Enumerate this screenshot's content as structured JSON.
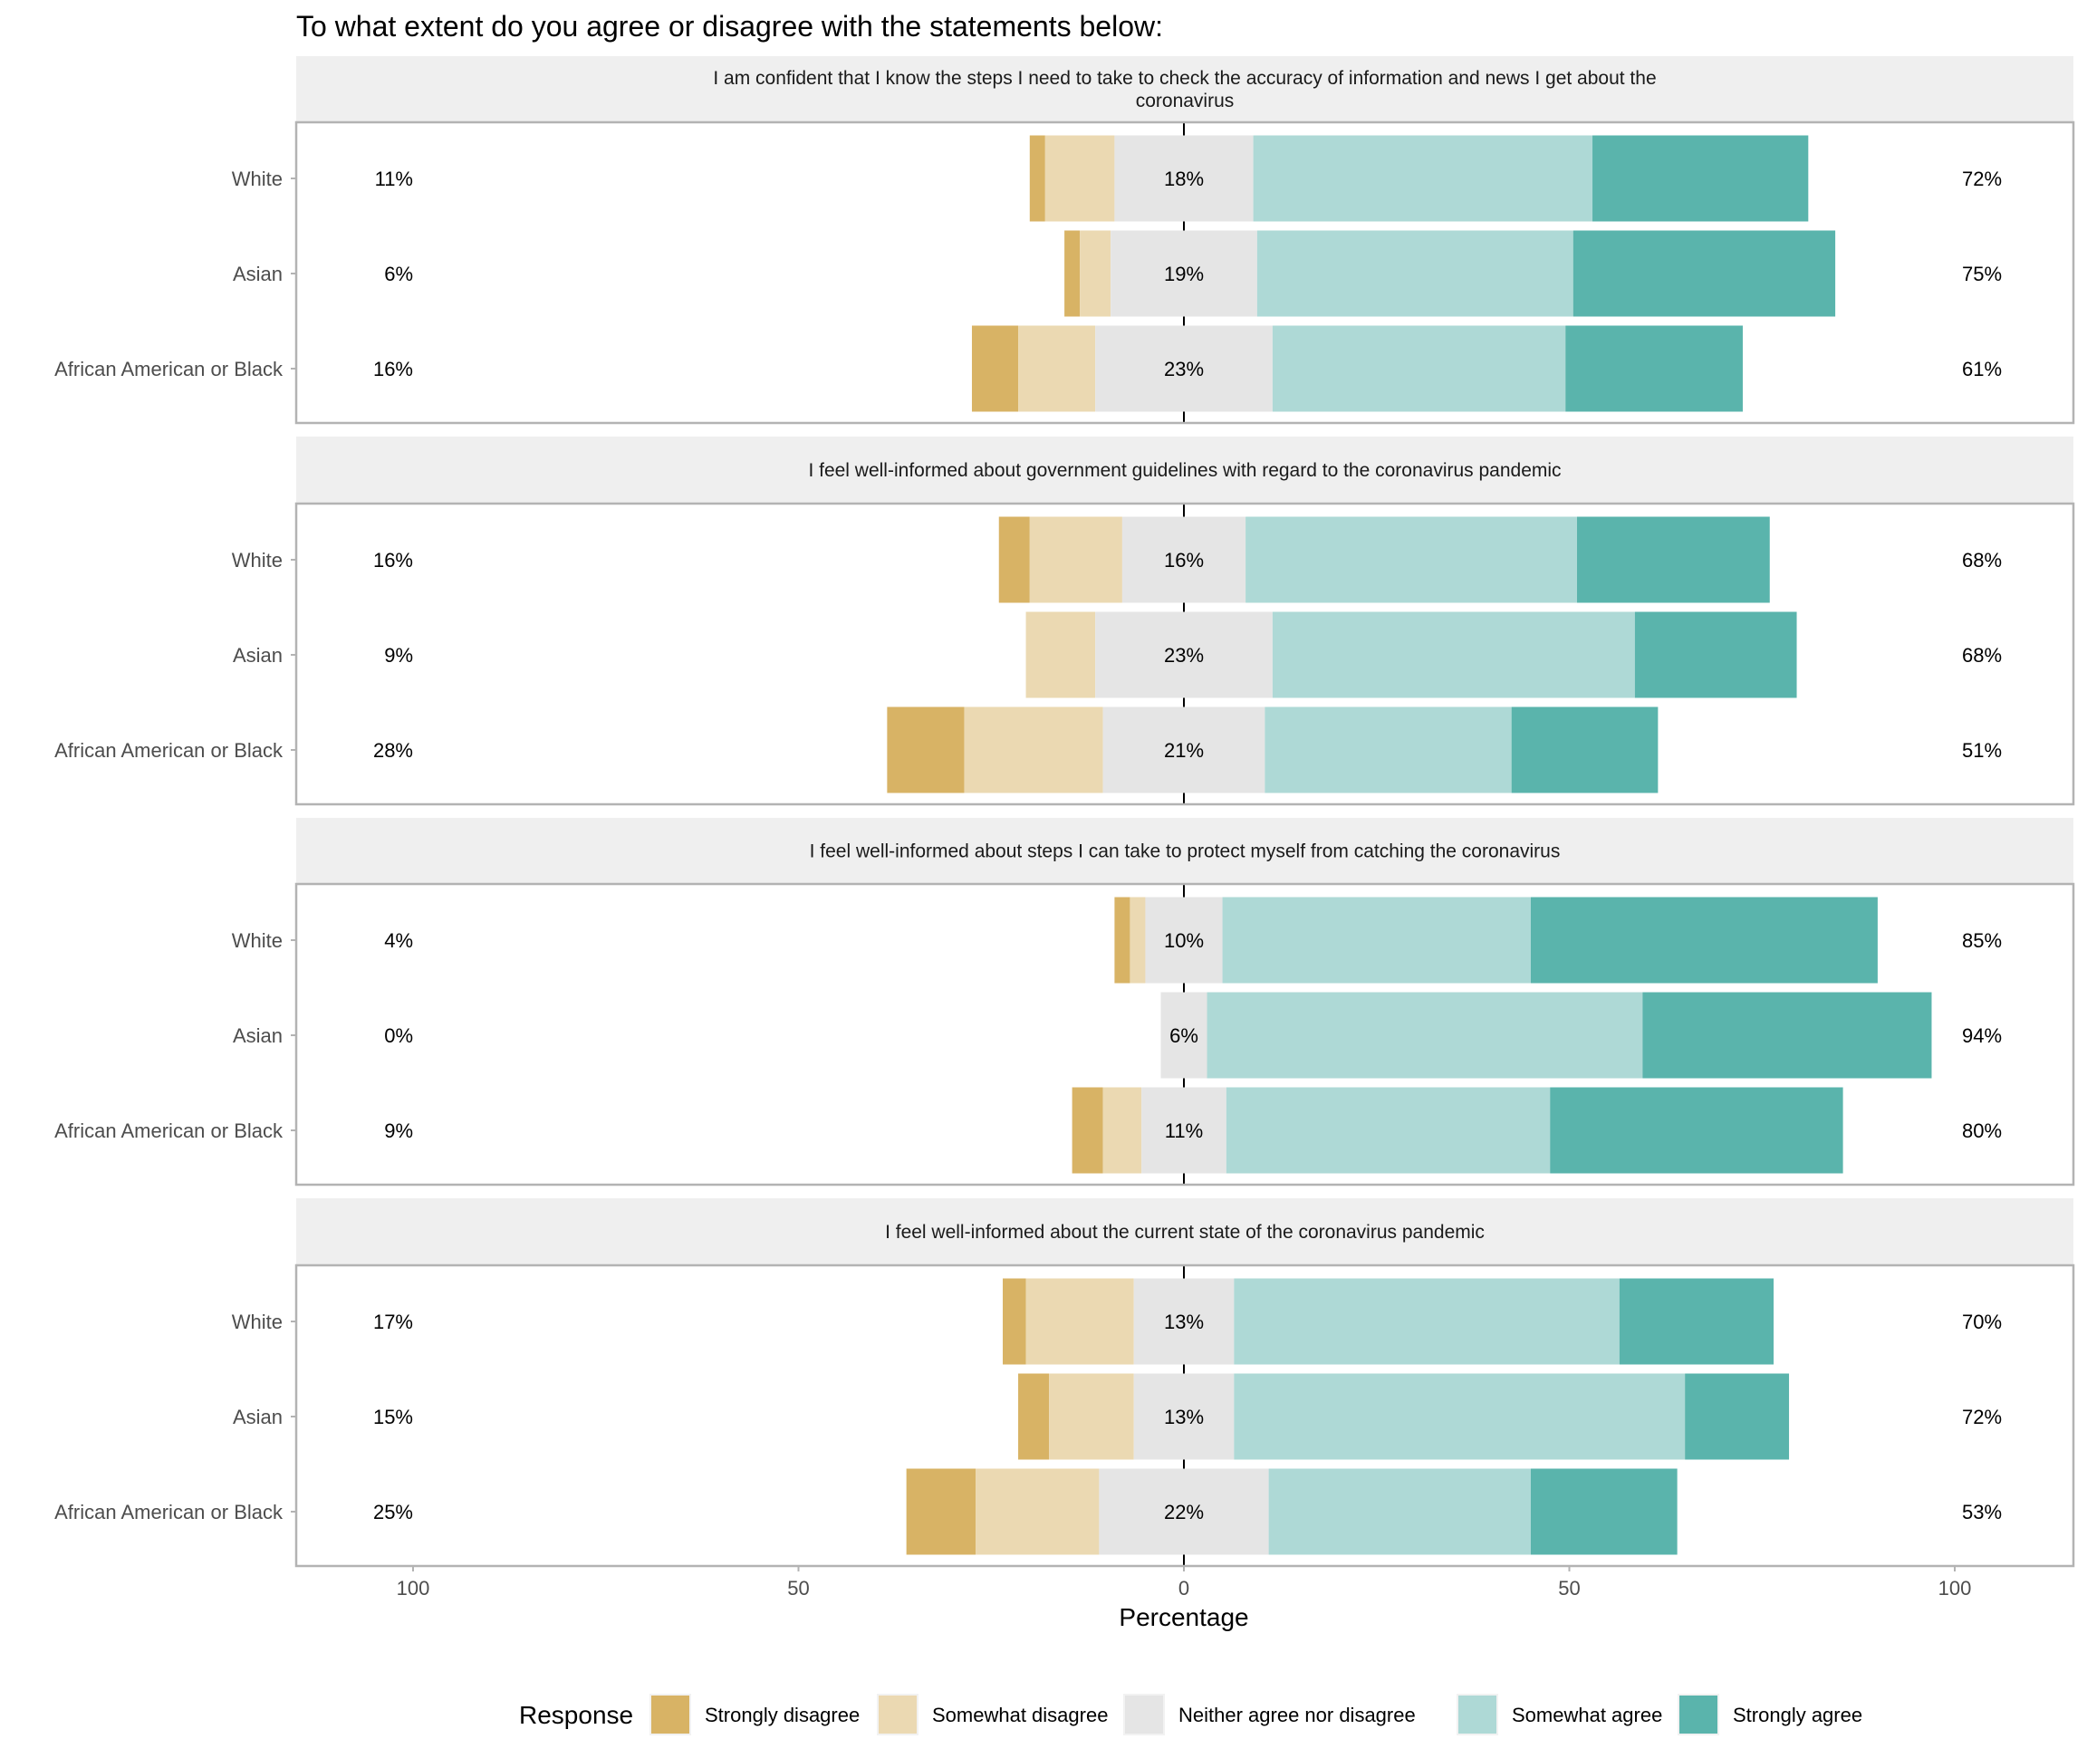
{
  "chart_data": {
    "type": "bar",
    "subtype": "diverging-stacked-horizontal",
    "title": "To what extent do you agree or disagree with the statements below:",
    "xlabel": "Percentage",
    "ylabel": "",
    "xlim": [
      -100,
      100
    ],
    "x_ticks": [
      100,
      50,
      0,
      50,
      100
    ],
    "grid": true,
    "legend": {
      "title": "Response",
      "position": "bottom",
      "entries": [
        {
          "name": "Strongly disagree",
          "color": "#D8B365"
        },
        {
          "name": "Somewhat disagree",
          "color": "#EBD9B2"
        },
        {
          "name": "Neither agree nor disagree",
          "color": "#E5E5E5"
        },
        {
          "name": "Somewhat agree",
          "color": "#AED9D6"
        },
        {
          "name": "Strongly agree",
          "color": "#5AB4AC"
        }
      ]
    },
    "categories": [
      "White",
      "Asian",
      "African American or Black"
    ],
    "panels": [
      {
        "statement_lines": [
          "I am confident that I know the steps I need to take to check the accuracy of information and news I get about the",
          "coronavirus"
        ],
        "rows": [
          {
            "group": "White",
            "values": [
              2,
              9,
              18,
              44,
              28
            ],
            "disagree_label": "11%",
            "neutral_label": "18%",
            "agree_label": "72%"
          },
          {
            "group": "Asian",
            "values": [
              2,
              4,
              19,
              41,
              34
            ],
            "disagree_label": "6%",
            "neutral_label": "19%",
            "agree_label": "75%"
          },
          {
            "group": "African American or Black",
            "values": [
              6,
              10,
              23,
              38,
              23
            ],
            "disagree_label": "16%",
            "neutral_label": "23%",
            "agree_label": "61%"
          }
        ]
      },
      {
        "statement_lines": [
          "I feel well-informed about government guidelines with regard to the coronavirus pandemic"
        ],
        "rows": [
          {
            "group": "White",
            "values": [
              4,
              12,
              16,
              43,
              25
            ],
            "disagree_label": "16%",
            "neutral_label": "16%",
            "agree_label": "68%"
          },
          {
            "group": "Asian",
            "values": [
              0,
              9,
              23,
              47,
              21
            ],
            "disagree_label": "9%",
            "neutral_label": "23%",
            "agree_label": "68%"
          },
          {
            "group": "African American or Black",
            "values": [
              10,
              18,
              21,
              32,
              19
            ],
            "disagree_label": "28%",
            "neutral_label": "21%",
            "agree_label": "51%"
          }
        ]
      },
      {
        "statement_lines": [
          "I feel well-informed about steps I can take to protect myself from catching the coronavirus"
        ],
        "rows": [
          {
            "group": "White",
            "values": [
              2,
              2,
              10,
              40,
              45
            ],
            "disagree_label": "4%",
            "neutral_label": "10%",
            "agree_label": "85%"
          },
          {
            "group": "Asian",
            "values": [
              0,
              0,
              6,
              56.5,
              37.5
            ],
            "disagree_label": "0%",
            "neutral_label": "6%",
            "agree_label": "94%"
          },
          {
            "group": "African American or Black",
            "values": [
              4,
              5,
              11,
              42,
              38
            ],
            "disagree_label": "9%",
            "neutral_label": "11%",
            "agree_label": "80%"
          }
        ]
      },
      {
        "statement_lines": [
          "I feel well-informed about the current state of the coronavirus pandemic"
        ],
        "rows": [
          {
            "group": "White",
            "values": [
              3,
              14,
              13,
              50,
              20
            ],
            "disagree_label": "17%",
            "neutral_label": "13%",
            "agree_label": "70%"
          },
          {
            "group": "Asian",
            "values": [
              4,
              11,
              13,
              58.5,
              13.5
            ],
            "disagree_label": "15%",
            "neutral_label": "13%",
            "agree_label": "72%"
          },
          {
            "group": "African American or Black",
            "values": [
              9,
              16,
              22,
              34,
              19
            ],
            "disagree_label": "25%",
            "neutral_label": "22%",
            "agree_label": "53%"
          }
        ]
      }
    ]
  }
}
